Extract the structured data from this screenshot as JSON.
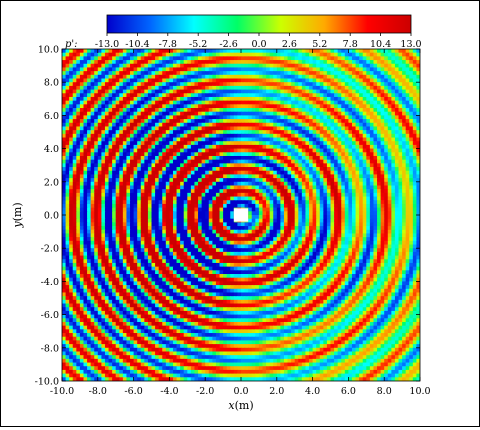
{
  "chart_data": {
    "type": "heatmap",
    "xlabel_var": "x",
    "xlabel_unit": "(m)",
    "ylabel_var": "y",
    "ylabel_unit": "(m)",
    "xlim": [
      -10.0,
      10.0
    ],
    "ylim": [
      -10.0,
      10.0
    ],
    "x_ticks": [
      -10.0,
      -8.0,
      -6.0,
      -4.0,
      -2.0,
      0.0,
      2.0,
      4.0,
      6.0,
      8.0,
      10.0
    ],
    "y_ticks": [
      -10.0,
      -8.0,
      -6.0,
      -4.0,
      -2.0,
      0.0,
      2.0,
      4.0,
      6.0,
      8.0,
      10.0
    ],
    "x_tick_labels": [
      "-10.0",
      "-8.0",
      "-6.0",
      "-4.0",
      "-2.0",
      "0.0",
      "2.0",
      "4.0",
      "6.0",
      "8.0",
      "10.0"
    ],
    "y_tick_labels": [
      "-10.0",
      "-8.0",
      "-6.0",
      "-4.0",
      "-2.0",
      "0.0",
      "2.0",
      "4.0",
      "6.0",
      "8.0",
      "10.0"
    ],
    "colorbar": {
      "label": "p':",
      "min": -13.0,
      "max": 13.0,
      "ticks": [
        -13.0,
        -10.4,
        -7.8,
        -5.2,
        -2.6,
        0.0,
        2.6,
        5.2,
        7.8,
        10.4,
        13.0
      ],
      "tick_labels": [
        "-13.0",
        "-10.4",
        "-7.8",
        "-5.2",
        "-2.6",
        "0.0",
        "2.6",
        "5.2",
        "7.8",
        "10.4",
        "13.0"
      ],
      "colormap": [
        "#0000cc",
        "#0066ff",
        "#00ffff",
        "#00ff66",
        "#ccff00",
        "#ffaa00",
        "#ff0000",
        "#cc0000"
      ]
    },
    "obstacle": {
      "shape": "square",
      "x_range": [
        -0.4,
        0.4
      ],
      "y_range": [
        -0.4,
        0.4
      ],
      "color": "#ffffff"
    },
    "field": {
      "description_of_pattern": "",
      "source_x": 0.0,
      "source_y": 0.0,
      "wavelength": 1.33,
      "grid_nx": 100,
      "grid_ny": 90
    }
  }
}
